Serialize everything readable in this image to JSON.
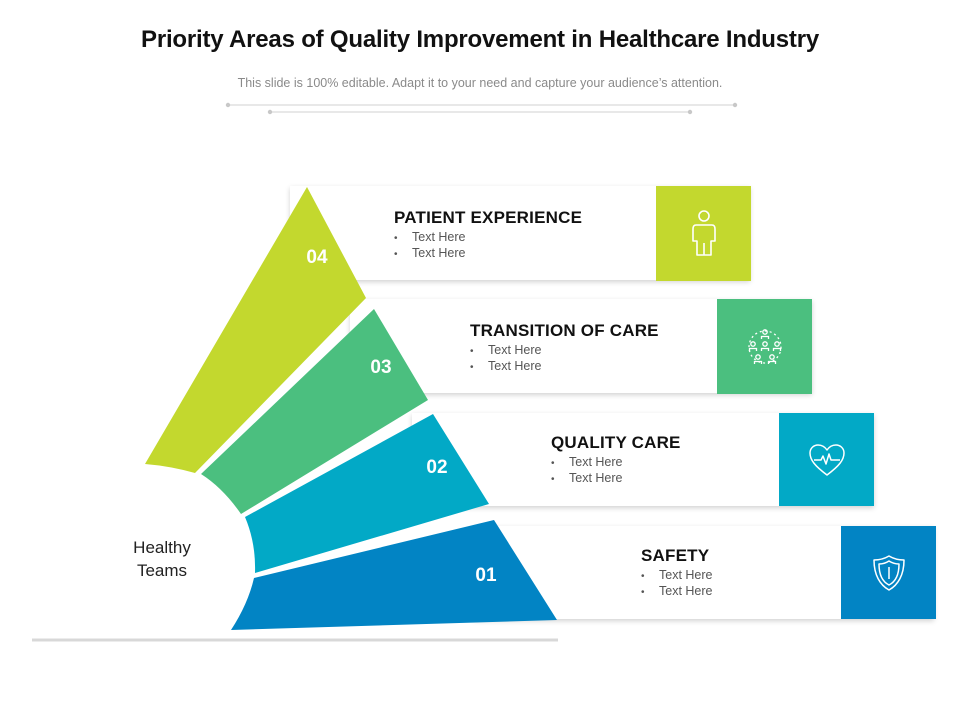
{
  "header": {
    "title": "Priority Areas of Quality Improvement in Healthcare Industry",
    "subtitle": "This slide is 100% editable.  Adapt it to your need and capture your audience’s attention."
  },
  "diagram": {
    "center_label_line1": "Healthy",
    "center_label_line2": "Teams",
    "items": [
      {
        "number": "04",
        "title": "PATIENT EXPERIENCE",
        "bullets": [
          "Text Here",
          "Text Here"
        ],
        "icon": "person-icon",
        "color": "#c3d82e"
      },
      {
        "number": "03",
        "title": "TRANSITION OF CARE",
        "bullets": [
          "Text Here",
          "Text Here"
        ],
        "icon": "people-network-icon",
        "color": "#4bbf7f"
      },
      {
        "number": "02",
        "title": "QUALITY CARE",
        "bullets": [
          "Text Here",
          "Text Here"
        ],
        "icon": "heartbeat-icon",
        "color": "#02a9c6"
      },
      {
        "number": "01",
        "title": "SAFETY",
        "bullets": [
          "Text Here",
          "Text Here"
        ],
        "icon": "shield-icon",
        "color": "#0284c4"
      }
    ]
  }
}
